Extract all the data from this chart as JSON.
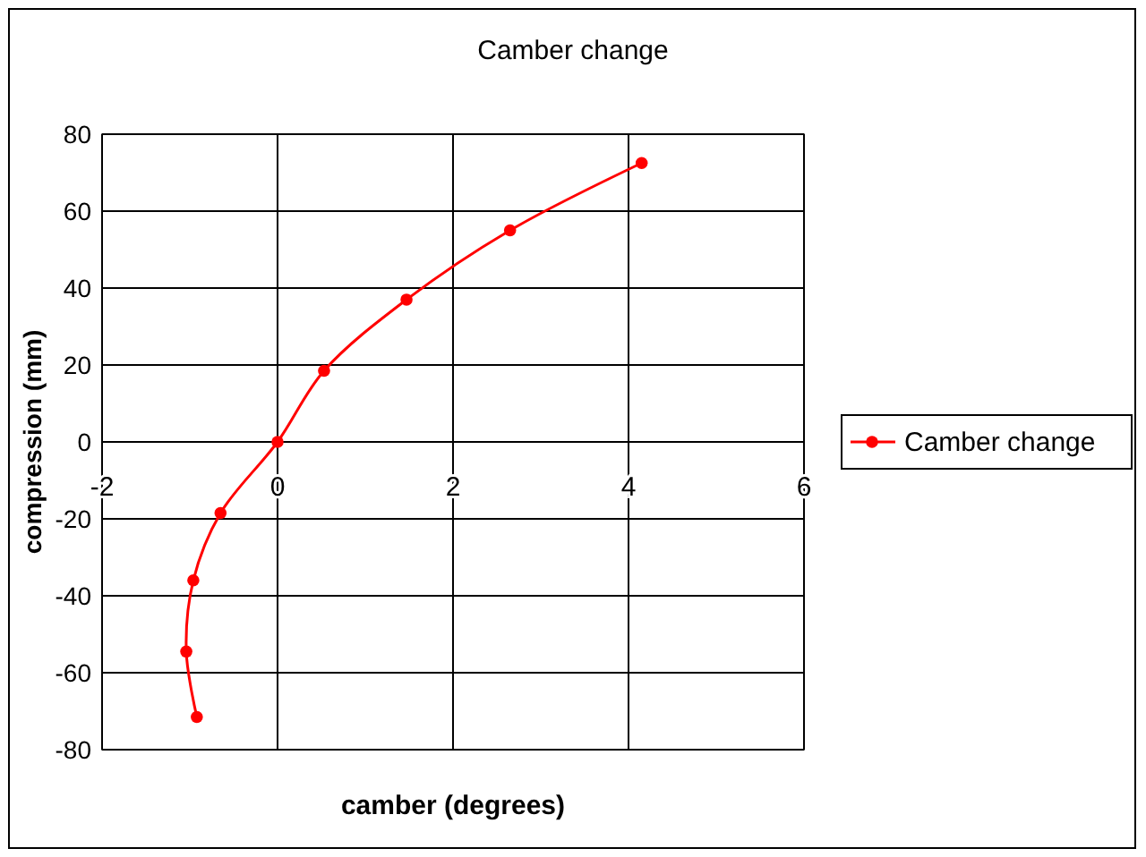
{
  "chart_data": {
    "type": "line",
    "title": "Camber change",
    "xlabel": "camber (degrees)",
    "ylabel": "compression (mm)",
    "xlim": [
      -2,
      6
    ],
    "xticks": [
      -2,
      0,
      2,
      4,
      6
    ],
    "ylim": [
      -80,
      80
    ],
    "yticks": [
      -80,
      -60,
      -40,
      -20,
      0,
      20,
      40,
      60,
      80
    ],
    "grid": true,
    "legend": "right",
    "marker": "circle",
    "series": [
      {
        "name": "Camber change",
        "color": "#ff0000",
        "x": [
          4.15,
          2.65,
          1.47,
          0.53,
          0,
          -0.65,
          -0.96,
          -1.04,
          -0.92
        ],
        "values": [
          72.5,
          55,
          37,
          18.5,
          0,
          -18.5,
          -36,
          -54.5,
          -71.5
        ]
      }
    ]
  }
}
